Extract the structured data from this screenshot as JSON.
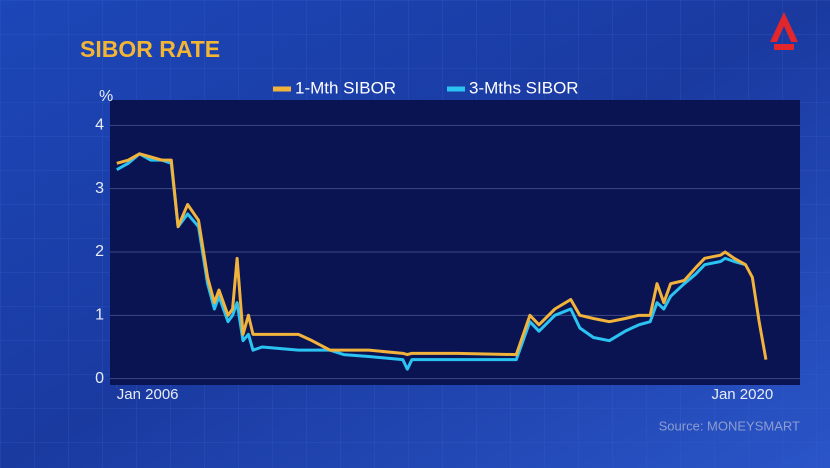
{
  "chart_data": {
    "type": "line",
    "title": "SIBOR RATE",
    "y_label": "%",
    "source": "Source: MONEYSMART",
    "x": [
      2006.0,
      2006.25,
      2006.5,
      2006.75,
      2007.0,
      2007.2,
      2007.35,
      2007.56,
      2007.8,
      2008.0,
      2008.15,
      2008.25,
      2008.45,
      2008.55,
      2008.65,
      2008.78,
      2008.9,
      2009.0,
      2009.2,
      2010.0,
      2010.3,
      2010.7,
      2011.0,
      2011.55,
      2012.3,
      2012.4,
      2012.5,
      2013.5,
      2014.8,
      2015.1,
      2015.3,
      2015.65,
      2016.0,
      2016.2,
      2016.5,
      2016.85,
      2017.2,
      2017.5,
      2017.75,
      2017.9,
      2018.05,
      2018.2,
      2018.5,
      2018.75,
      2018.95,
      2019.3,
      2019.4,
      2019.6,
      2019.85,
      2020.0,
      2020.15,
      2020.3
    ],
    "series": [
      {
        "name": "1-Mth SIBOR",
        "color": "#f1b33c",
        "values": [
          3.4,
          3.45,
          3.55,
          3.5,
          3.45,
          3.45,
          2.4,
          2.75,
          2.5,
          1.6,
          1.2,
          1.4,
          1.0,
          1.1,
          1.9,
          0.7,
          1.0,
          0.7,
          0.7,
          0.7,
          0.6,
          0.45,
          0.45,
          0.45,
          0.4,
          0.38,
          0.4,
          0.4,
          0.38,
          1.0,
          0.85,
          1.1,
          1.25,
          1.0,
          0.95,
          0.9,
          0.95,
          1.0,
          1.0,
          1.5,
          1.2,
          1.5,
          1.55,
          1.75,
          1.9,
          1.95,
          2.0,
          1.9,
          1.8,
          1.6,
          0.9,
          0.3
        ]
      },
      {
        "name": "3-Mths SIBOR",
        "color": "#2bc4f2",
        "values": [
          3.3,
          3.4,
          3.55,
          3.45,
          3.45,
          3.4,
          2.4,
          2.6,
          2.4,
          1.5,
          1.1,
          1.3,
          0.9,
          1.0,
          1.2,
          0.6,
          0.7,
          0.45,
          0.5,
          0.45,
          0.45,
          0.45,
          0.38,
          0.35,
          0.3,
          0.15,
          0.3,
          0.3,
          0.3,
          0.9,
          0.75,
          1.0,
          1.1,
          0.8,
          0.65,
          0.6,
          0.75,
          0.85,
          0.9,
          1.2,
          1.1,
          1.3,
          1.5,
          1.65,
          1.8,
          1.85,
          1.9,
          1.85,
          1.8,
          null,
          null,
          null
        ]
      }
    ],
    "xlim": [
      2005.85,
      2021.05
    ],
    "xticks": [
      {
        "value": 2006,
        "label": "Jan 2006"
      },
      {
        "value": 2020,
        "label": "Jan 2020"
      }
    ],
    "ylim": [
      -0.1,
      4.4
    ],
    "yticks": [
      0,
      1,
      2,
      3,
      4
    ],
    "grid": true
  }
}
